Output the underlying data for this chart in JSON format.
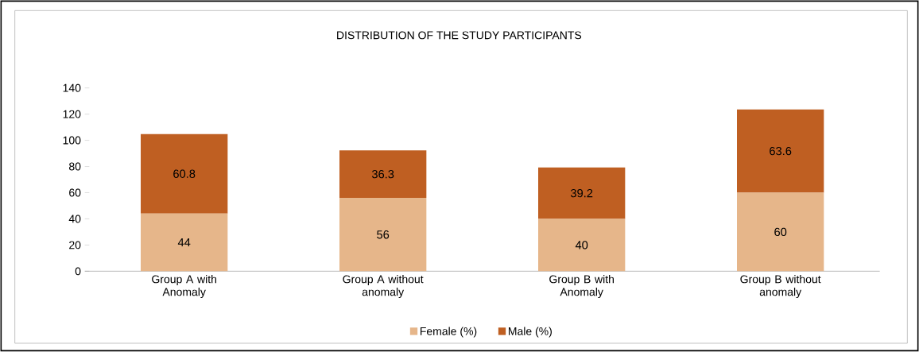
{
  "chart_data": {
    "type": "bar",
    "title": "DISTRIBUTION OF THE STUDY PARTICIPANTS",
    "categories": [
      "Group A with Anomaly",
      "Group A without anomaly",
      "Group B with Anomaly",
      "Group B without anomaly"
    ],
    "series": [
      {
        "name": "Female (%)",
        "color": "#e6b68a",
        "values": [
          44,
          56,
          40,
          60
        ]
      },
      {
        "name": "Male (%)",
        "color": "#bf5f22",
        "values": [
          60.8,
          36.3,
          39.2,
          63.6
        ]
      }
    ],
    "stacked": true,
    "ylim": [
      0,
      140
    ],
    "yticks": [
      0,
      20,
      40,
      60,
      80,
      100,
      120,
      140
    ],
    "data_labels": true,
    "legend": "bottom",
    "grid": false
  }
}
